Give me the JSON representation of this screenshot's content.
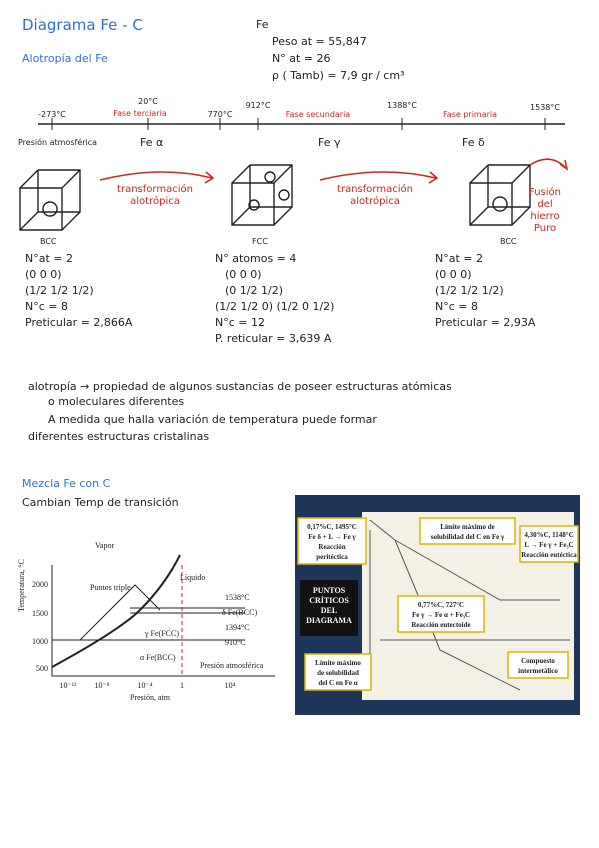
{
  "header": {
    "title": "Diagrama  Fe - C",
    "subtitle": "Alotropía del Fe"
  },
  "properties": {
    "symbol": "Fe",
    "lines": [
      "Peso at = 55,847",
      "N° at = 26",
      "ρ ( Tamb) = 7,9 gr / cm³"
    ]
  },
  "timeline": {
    "temperatures": [
      "-273°C",
      "20°C",
      "770°C",
      "912°C",
      "1388°C",
      "1538°C"
    ],
    "phases": [
      "Fase terciaria",
      "Fase secundaria",
      "Fase primaria"
    ],
    "pressure": "Presión atmosférica",
    "forms": [
      "Fe α",
      "Fe γ",
      "Fe δ"
    ]
  },
  "structures": [
    {
      "label": "BCC",
      "lines": [
        "N°at = 2",
        "(0 0 0)",
        "(1/2 1/2 1/2)",
        "N°c = 8",
        "Preticular = 2,866A"
      ]
    },
    {
      "label": "FCC",
      "lines": [
        "N° atomos = 4",
        "(0 0 0)",
        "(0 1/2 1/2)",
        "(1/2 1/2 0) (1/2 0 1/2)",
        "N°c = 12",
        "P. reticular = 3,639 A"
      ]
    },
    {
      "label": "BCC",
      "lines": [
        "N°at = 2",
        "(0 0 0)",
        "(1/2 1/2 1/2)",
        "N°c = 8",
        "Preticular = 2,93A"
      ]
    }
  ],
  "transitions": [
    [
      "transformación",
      "alotrópica"
    ],
    [
      "transformación",
      "alotrópica"
    ],
    [
      "Fusión",
      "del",
      "hierro",
      "Puro"
    ]
  ],
  "definition": {
    "lines": [
      "alotropía → propiedad de algunos sustancias de poseer estructuras atómicas",
      "o moleculares diferentes",
      "A medida que halla variación de temperatura puede formar",
      "diferentes estructuras cristalinas"
    ]
  },
  "mixture": {
    "title": "Mezcla Fe con C",
    "subtitle": "Cambian Temp de transición"
  },
  "phase_figure": {
    "labels": [
      "Vapor",
      "Puntos triple",
      "Líquido",
      "1538°C",
      "δ Fe(BCC)",
      "1394°C",
      "γ Fe(FCC)",
      "910°C",
      "α Fe(BCC)",
      "Presión atmosférica"
    ],
    "y_label": "Temperatura, °C",
    "y_ticks": [
      "2000",
      "1500",
      "1000",
      "500"
    ],
    "x_label": "Presión, atm",
    "x_ticks": [
      "10⁻¹²",
      "10⁻⁸",
      "10⁻⁴",
      "1",
      "10⁴"
    ]
  },
  "critical_figure": {
    "title": [
      "PUNTOS",
      "CRÍTICOS",
      "DEL",
      "DIAGRAMA"
    ],
    "boxes": [
      [
        "0,17%C, 1495°C",
        "Fe δ + L → Fe γ",
        "Reacción",
        "peritéctica"
      ],
      [
        "Límite máximo de",
        "solubilidad del C en Fe γ"
      ],
      [
        "4,30%C, 1148°C",
        "L → Fe γ + Fe₃C",
        "Reacción eutéctica"
      ],
      [
        "0,77%C, 727°C",
        "Fe γ → Fe α + Fe₃C",
        "Reacción eutectoide"
      ],
      [
        "Límite máximo",
        "de solubilidad",
        "del C en Fe α"
      ],
      [
        "Compuesto",
        "intermetálico"
      ]
    ]
  }
}
